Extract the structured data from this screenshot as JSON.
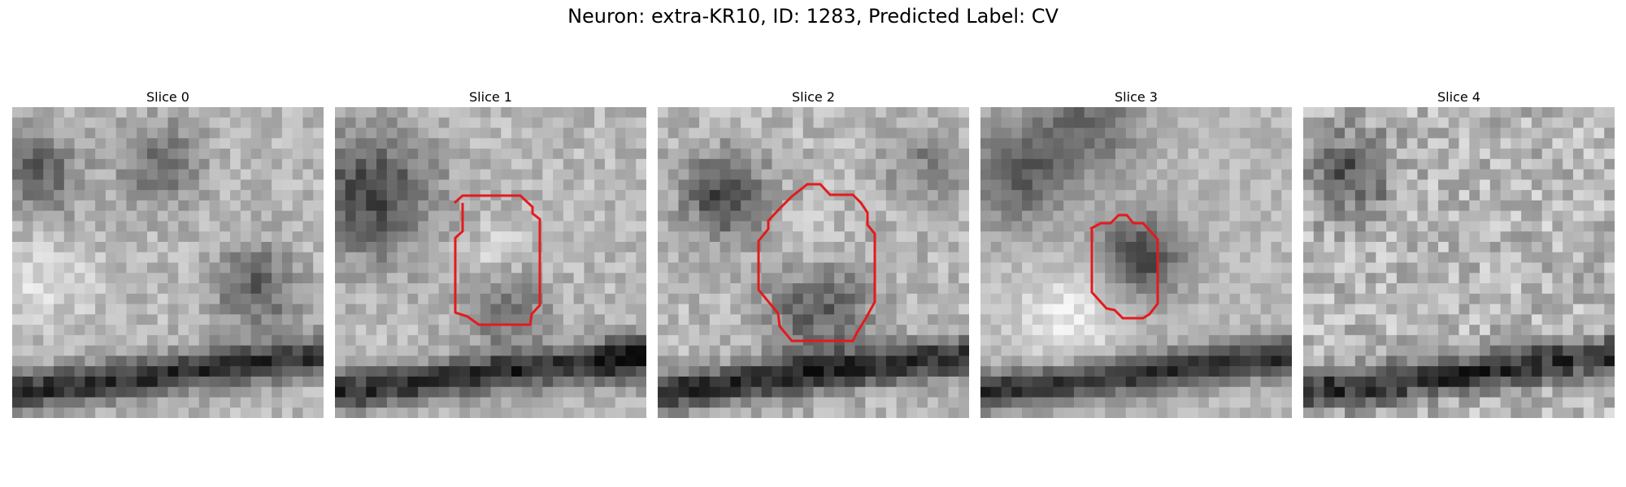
{
  "figure": {
    "title": "Neuron: extra-KR10, ID: 1283, Predicted Label: CV"
  },
  "colors": {
    "contour": "#e41a1c",
    "dark": "#1a1a1a",
    "light": "#efefef"
  },
  "slices": [
    {
      "title": "Slice 0",
      "has_contour": false
    },
    {
      "title": "Slice 1",
      "has_contour": true
    },
    {
      "title": "Slice 2",
      "has_contour": true
    },
    {
      "title": "Slice 3",
      "has_contour": true
    },
    {
      "title": "Slice 4",
      "has_contour": false
    }
  ]
}
